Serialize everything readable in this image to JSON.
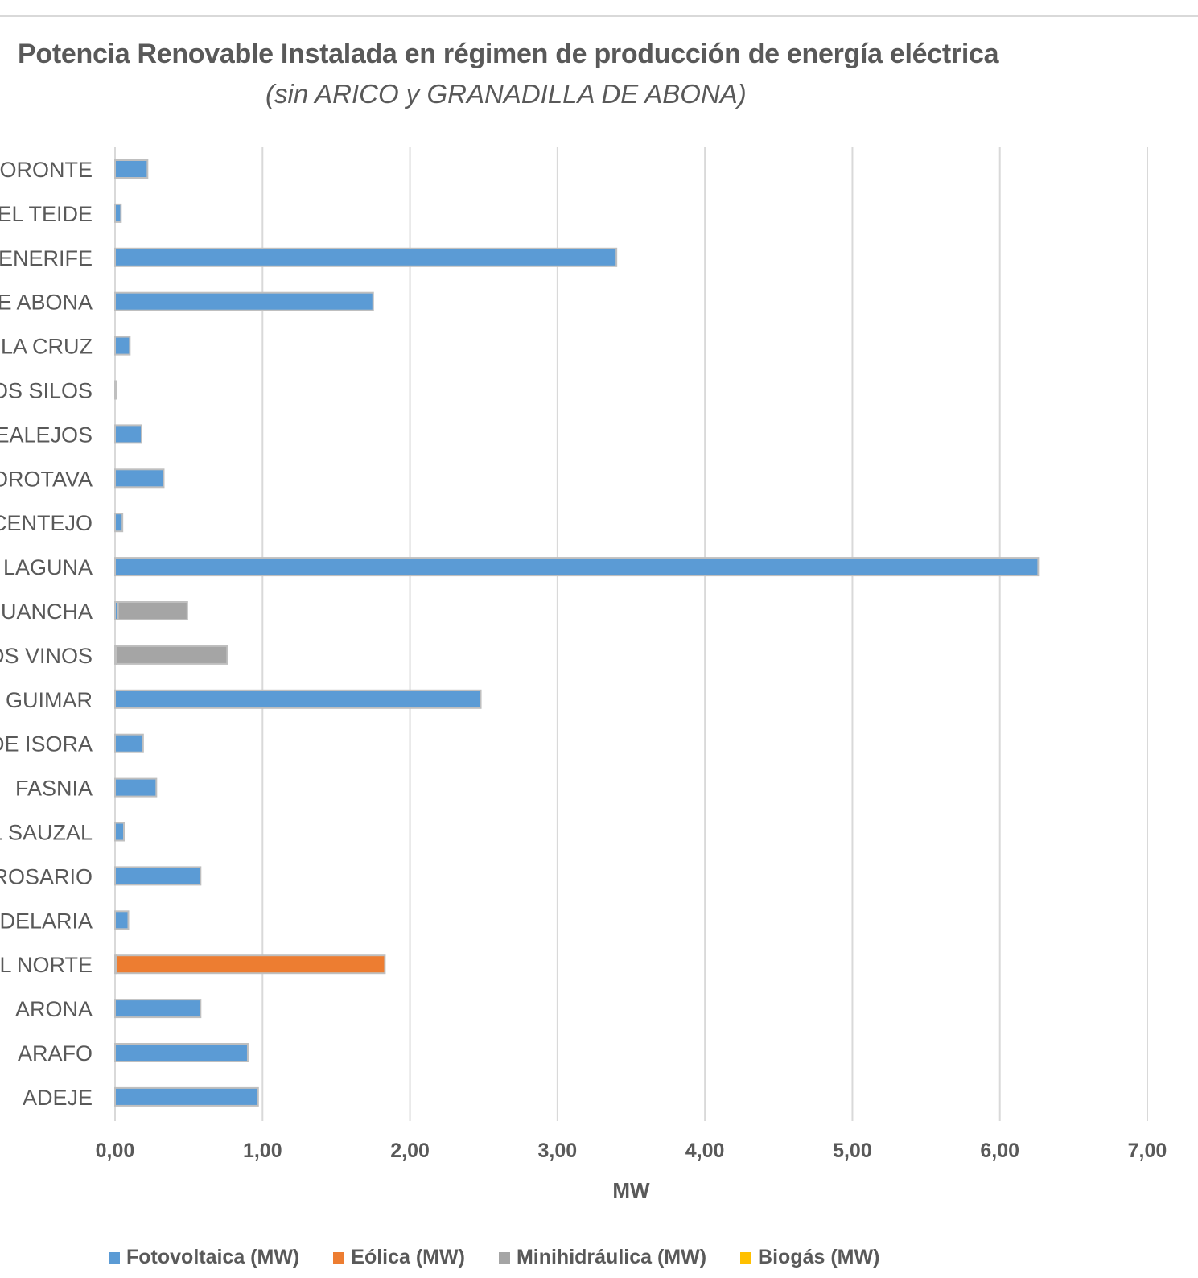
{
  "chart_data": {
    "type": "bar",
    "orientation": "horizontal",
    "title": "Potencia Renovable Instalada en régimen de producción de energía eléctrica",
    "subtitle": "(sin ARICO y GRANADILLA DE ABONA)",
    "xlabel": "MW",
    "ylabel": "",
    "xlim": [
      0,
      7
    ],
    "x_ticks": [
      "0,00",
      "1,00",
      "2,00",
      "3,00",
      "4,00",
      "5,00",
      "6,00",
      "7,00"
    ],
    "grid": "vertical",
    "legend_position": "bottom",
    "categories": [
      "CORONTE",
      "EL TEIDE",
      "TENERIFE",
      "E ABONA",
      "LA CRUZ",
      "OS SILOS",
      "EALEJOS",
      "OROTAVA",
      "CENTEJO",
      "LAGUNA",
      "GUANCHA",
      "OS VINOS",
      "GUIMAR",
      "DE ISORA",
      "FASNIA",
      "L SAUZAL",
      "ROSARIO",
      "DELARIA",
      "EL NORTE",
      "ARONA",
      "ARAFO",
      "ADEJE"
    ],
    "series": [
      {
        "name": "Fotovoltaica (MW)",
        "color": "#5b9bd5",
        "values": [
          0.22,
          0.04,
          3.4,
          1.75,
          0.1,
          0.01,
          0.18,
          0.33,
          0.05,
          6.26,
          0.02,
          0.01,
          2.48,
          0.19,
          0.28,
          0.06,
          0.58,
          0.09,
          0.01,
          0.58,
          0.9,
          0.97
        ]
      },
      {
        "name": "Eólica (MW)",
        "color": "#ed7d31",
        "values": [
          0,
          0,
          0,
          0,
          0,
          0,
          0,
          0,
          0,
          0,
          0,
          0,
          0,
          0,
          0,
          0,
          0,
          0,
          1.82,
          0,
          0,
          0
        ]
      },
      {
        "name": "Minihidráulica (MW)",
        "color": "#a5a5a5",
        "values": [
          0,
          0,
          0,
          0,
          0,
          0,
          0,
          0,
          0,
          0,
          0.47,
          0.75,
          0,
          0,
          0,
          0,
          0,
          0,
          0,
          0,
          0,
          0
        ]
      },
      {
        "name": "Biogás (MW)",
        "color": "#ffc000",
        "values": [
          0,
          0,
          0,
          0,
          0,
          0,
          0,
          0,
          0,
          0,
          0,
          0,
          0,
          0,
          0,
          0,
          0,
          0,
          0,
          0,
          0,
          0
        ]
      }
    ]
  }
}
